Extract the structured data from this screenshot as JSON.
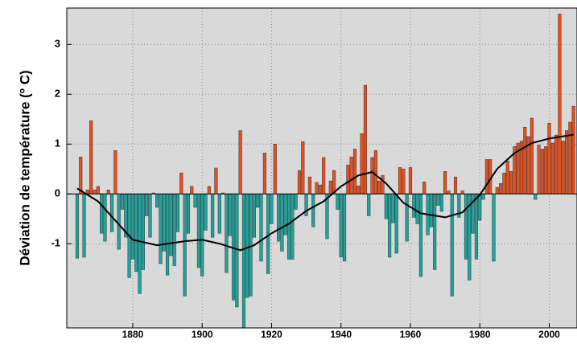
{
  "chart_data": {
    "type": "bar",
    "ylabel": "Déviation de température (º C)",
    "x": [
      1864,
      1865,
      1866,
      1867,
      1868,
      1869,
      1870,
      1871,
      1872,
      1873,
      1874,
      1875,
      1876,
      1877,
      1878,
      1879,
      1880,
      1881,
      1882,
      1883,
      1884,
      1885,
      1886,
      1887,
      1888,
      1889,
      1890,
      1891,
      1892,
      1893,
      1894,
      1895,
      1896,
      1897,
      1898,
      1899,
      1900,
      1901,
      1902,
      1903,
      1904,
      1905,
      1906,
      1907,
      1908,
      1909,
      1910,
      1911,
      1912,
      1913,
      1914,
      1915,
      1916,
      1917,
      1918,
      1919,
      1920,
      1921,
      1922,
      1923,
      1924,
      1925,
      1926,
      1927,
      1928,
      1929,
      1930,
      1931,
      1932,
      1933,
      1934,
      1935,
      1936,
      1937,
      1938,
      1939,
      1940,
      1941,
      1942,
      1943,
      1944,
      1945,
      1946,
      1947,
      1948,
      1949,
      1950,
      1951,
      1952,
      1953,
      1954,
      1955,
      1956,
      1957,
      1958,
      1959,
      1960,
      1961,
      1962,
      1963,
      1964,
      1965,
      1966,
      1967,
      1968,
      1969,
      1970,
      1971,
      1972,
      1973,
      1974,
      1975,
      1976,
      1977,
      1978,
      1979,
      1980,
      1981,
      1982,
      1983,
      1984,
      1985,
      1986,
      1987,
      1988,
      1989,
      1990,
      1991,
      1992,
      1993,
      1994,
      1995,
      1996,
      1997,
      1998,
      1999,
      2000,
      2001,
      2002,
      2003,
      2004,
      2005,
      2006,
      2007
    ],
    "values": [
      -1.29,
      0.74,
      -1.27,
      0.08,
      1.47,
      0.08,
      0.15,
      -0.79,
      -0.95,
      0.08,
      -0.76,
      0.87,
      -1.11,
      -0.31,
      -0.87,
      -1.68,
      -1.31,
      -1.56,
      -2.0,
      -1.52,
      -0.44,
      -0.87,
      0.02,
      -0.27,
      -1.4,
      -1.15,
      -1.63,
      -1.24,
      -1.44,
      -0.76,
      0.42,
      -2.05,
      -0.79,
      0.15,
      -0.27,
      -1.48,
      -1.65,
      -0.73,
      0.15,
      -0.87,
      0.52,
      -0.79,
      0.02,
      -1.58,
      -0.84,
      -2.13,
      -2.27,
      1.27,
      -2.69,
      -2.08,
      -2.05,
      -0.87,
      -0.27,
      -1.35,
      0.82,
      -1.6,
      -0.6,
      1.0,
      -0.95,
      -1.15,
      -0.82,
      -1.31,
      -1.31,
      -0.31,
      0.47,
      1.05,
      -0.44,
      0.34,
      -0.66,
      0.23,
      0.18,
      0.73,
      -0.9,
      0.26,
      0.47,
      -0.31,
      -1.27,
      -1.35,
      0.58,
      0.74,
      0.9,
      0.16,
      1.21,
      2.18,
      -0.44,
      0.73,
      0.87,
      0.26,
      0.37,
      -0.5,
      -1.27,
      -0.58,
      -1.19,
      0.53,
      0.5,
      -0.95,
      0.53,
      -0.47,
      -0.6,
      -1.66,
      0.24,
      -0.82,
      -0.66,
      -1.52,
      -0.23,
      -0.35,
      0.45,
      0.06,
      -2.05,
      0.34,
      -0.47,
      0.06,
      -1.31,
      -1.73,
      -0.79,
      -1.31,
      -0.53,
      -0.11,
      0.69,
      0.69,
      -1.35,
      0.13,
      0.21,
      0.42,
      0.66,
      0.45,
      0.95,
      1.02,
      1.06,
      1.34,
      1.15,
      1.52,
      -0.11,
      0.98,
      0.9,
      0.95,
      1.42,
      1.02,
      1.18,
      3.61,
      1.06,
      1.27,
      1.44,
      1.76
    ],
    "positive_color": "#e5501e",
    "negative_color": "#1ea39d",
    "smooth": {
      "x": [
        1864,
        1870,
        1880,
        1887,
        1895,
        1900,
        1905,
        1911,
        1915,
        1920,
        1925,
        1930,
        1935,
        1940,
        1945,
        1949,
        1953,
        1958,
        1963,
        1970,
        1975,
        1980,
        1985,
        1990,
        1995,
        2000,
        2007
      ],
      "values": [
        0.11,
        -0.15,
        -0.92,
        -1.03,
        -0.95,
        -0.92,
        -1.0,
        -1.13,
        -1.03,
        -0.79,
        -0.6,
        -0.34,
        -0.15,
        0.15,
        0.37,
        0.44,
        0.21,
        -0.18,
        -0.39,
        -0.47,
        -0.37,
        -0.02,
        0.5,
        0.82,
        1.02,
        1.11,
        1.19
      ],
      "color": "#000000"
    },
    "xlim": [
      1861,
      2008
    ],
    "xticks": [
      1880,
      1900,
      1920,
      1940,
      1960,
      1980,
      2000
    ],
    "ylim": [
      -2.69,
      3.73
    ],
    "yticks": [
      -1,
      0,
      1,
      2,
      3
    ],
    "grid": true
  }
}
